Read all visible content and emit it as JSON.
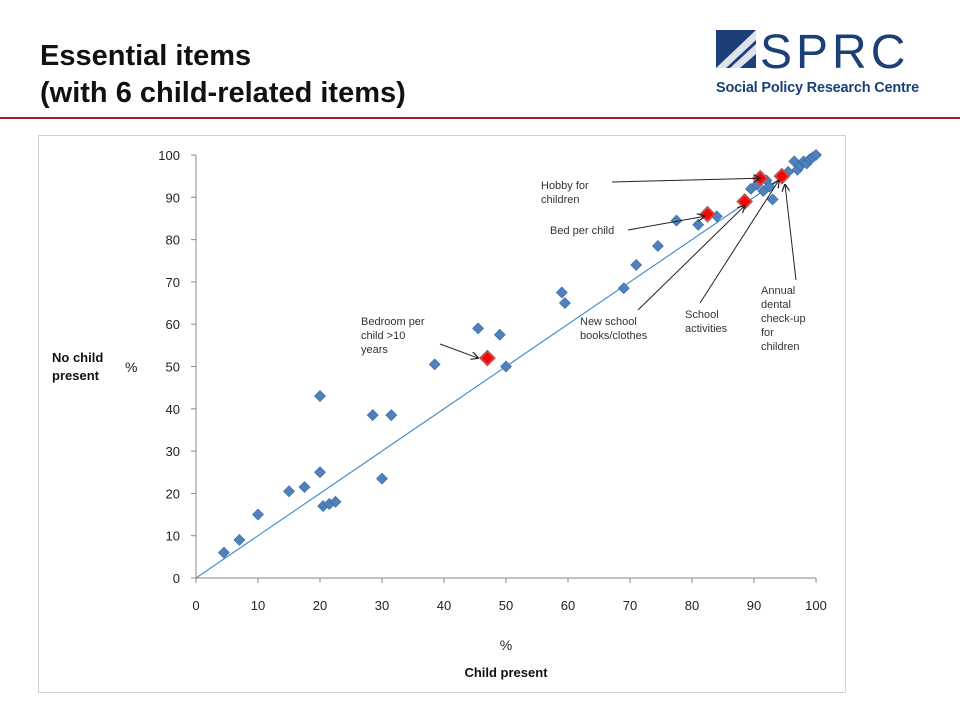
{
  "slide": {
    "title_line1": "Essential items",
    "title_line2": "(with 6 child-related items)",
    "logo_text": "SPRC",
    "logo_subtitle": "Social Policy Research Centre"
  },
  "colors": {
    "point": "#4f81bd",
    "point_stroke": "#3a66a0",
    "highlight_fill": "#ff0000",
    "highlight_outline": "#c0504d",
    "diagonal": "#4a90c8",
    "accent_rule": "#9e1f34",
    "logo_blue": "#1c3f7a"
  },
  "chart_data": {
    "type": "scatter",
    "xlabel_unit": "%",
    "xlabel": "Child present",
    "ylabel_unit": "%",
    "ylabel": [
      "No child",
      "present"
    ],
    "xlim": [
      0,
      100
    ],
    "ylim": [
      0,
      100
    ],
    "xticks": [
      0,
      10,
      20,
      30,
      40,
      50,
      60,
      70,
      80,
      90,
      100
    ],
    "yticks": [
      0,
      10,
      20,
      30,
      40,
      50,
      60,
      70,
      80,
      90,
      100
    ],
    "grid": false,
    "reference_line": "y = x",
    "series": [
      {
        "points": [
          [
            4.5,
            6
          ],
          [
            7,
            9
          ],
          [
            10,
            15
          ],
          [
            15,
            20.5
          ],
          [
            17.5,
            21.5
          ],
          [
            20,
            25
          ],
          [
            20,
            43
          ],
          [
            20.5,
            17
          ],
          [
            21.5,
            17.5
          ],
          [
            22.5,
            18
          ],
          [
            28.5,
            38.5
          ],
          [
            30,
            23.5
          ],
          [
            31.5,
            38.5
          ],
          [
            38.5,
            50.5
          ],
          [
            45.5,
            59
          ],
          [
            49,
            57.5
          ],
          [
            50,
            50
          ],
          [
            59,
            67.5
          ],
          [
            59.5,
            65
          ],
          [
            69,
            68.5
          ],
          [
            71,
            74
          ],
          [
            74.5,
            78.5
          ],
          [
            77.5,
            84.5
          ],
          [
            81,
            83.5
          ],
          [
            84,
            85.5
          ],
          [
            88.5,
            88.5
          ],
          [
            89.5,
            92
          ],
          [
            90.5,
            93
          ],
          [
            91.5,
            91.5
          ],
          [
            92,
            94
          ],
          [
            92.5,
            92.5
          ],
          [
            93,
            89.5
          ],
          [
            94.5,
            95
          ],
          [
            95.5,
            96
          ],
          [
            96.5,
            98.5
          ],
          [
            97,
            96.5
          ],
          [
            97.5,
            97.5
          ],
          [
            98,
            98.5
          ],
          [
            98.5,
            98
          ],
          [
            99,
            99
          ],
          [
            99.5,
            99.5
          ],
          [
            100,
            100
          ]
        ]
      },
      {
        "highlighted": true,
        "points": [
          [
            47,
            52
          ],
          [
            82.5,
            86
          ],
          [
            88.5,
            89
          ],
          [
            91,
            94.5
          ],
          [
            94.5,
            95
          ]
        ]
      }
    ],
    "annotations": [
      {
        "text": [
          "Hobby for",
          "children"
        ],
        "target": [
          91,
          94.5
        ]
      },
      {
        "text": [
          "Bed per child"
        ],
        "target": [
          82,
          85.5
        ]
      },
      {
        "text": [
          "Bedroom per",
          "child  >10",
          "years"
        ],
        "target": [
          45.5,
          52
        ]
      },
      {
        "text": [
          "New school",
          "books/clothes"
        ],
        "target": [
          88.5,
          88
        ]
      },
      {
        "text": [
          "School",
          "activities"
        ],
        "target": [
          94,
          94
        ]
      },
      {
        "text": [
          "Annual",
          "dental",
          "check-up",
          "for",
          "children"
        ],
        "target": [
          95,
          93
        ]
      }
    ]
  }
}
